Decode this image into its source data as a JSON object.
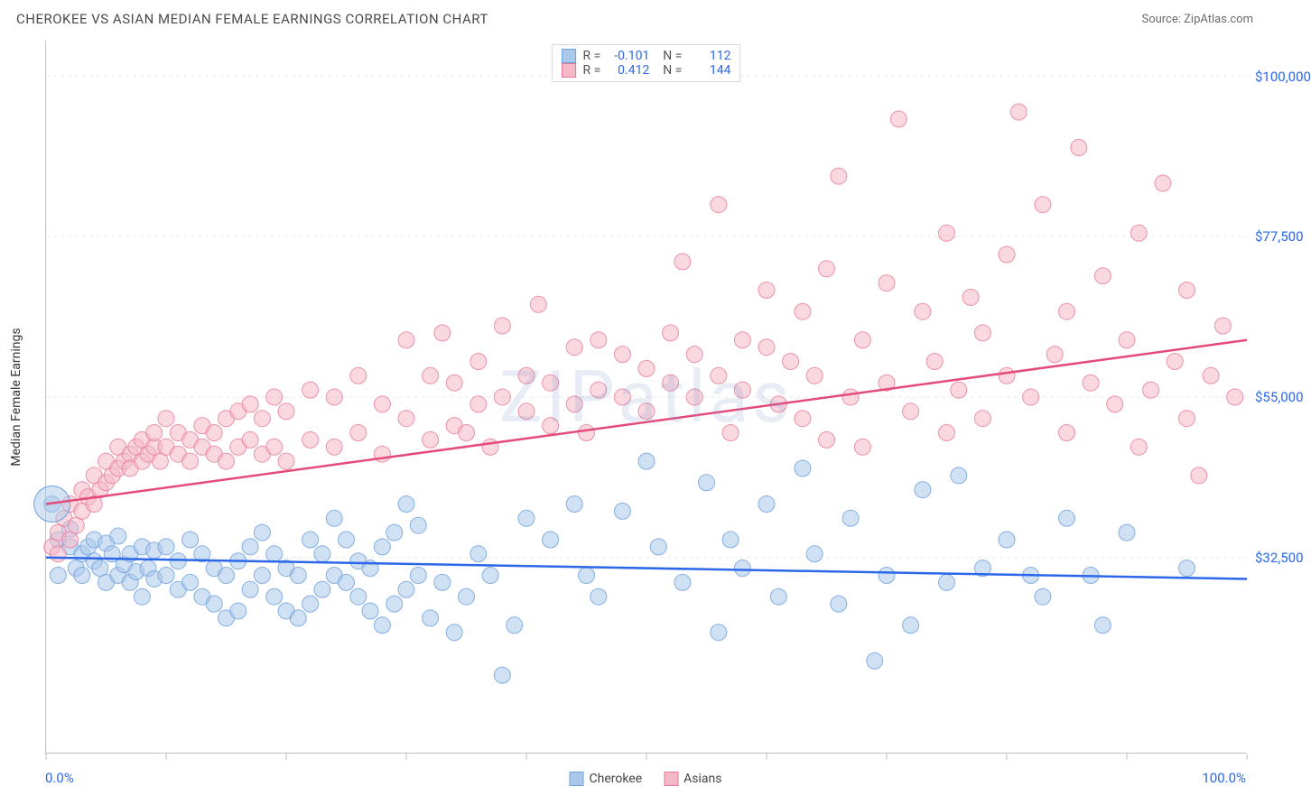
{
  "header": {
    "title": "CHEROKEE VS ASIAN MEDIAN FEMALE EARNINGS CORRELATION CHART",
    "source_prefix": "Source: ",
    "source_name": "ZipAtlas.com"
  },
  "watermark": "ZIPatlas",
  "chart": {
    "type": "scatter",
    "ylabel": "Median Female Earnings",
    "xlim": [
      0,
      100
    ],
    "ylim": [
      5000,
      105000
    ],
    "x_tick_positions": [
      0,
      10,
      20,
      30,
      40,
      50,
      60,
      70,
      80,
      90,
      100
    ],
    "x_tick_labels_shown": {
      "0": "0.0%",
      "100": "100.0%"
    },
    "y_gridlines": [
      32500,
      55000,
      77500,
      100000
    ],
    "y_tick_labels": {
      "32500": "$32,500",
      "55000": "$55,000",
      "77500": "$77,500",
      "100000": "$100,000"
    },
    "background_color": "#ffffff",
    "grid_color": "#e8e8e8",
    "axis_color": "#bfbfbf",
    "series": [
      {
        "name": "Cherokee",
        "marker_fill": "#a9c8ea",
        "marker_stroke": "#6b9fde",
        "marker_opacity": 0.55,
        "marker_radius": 9,
        "line_color": "#2b67e8",
        "line_width": 2.5,
        "stats": {
          "R": "-0.101",
          "N": "112"
        },
        "trend": {
          "x1": 0,
          "y1": 32500,
          "x2": 100,
          "y2": 29500
        },
        "points": [
          [
            0.5,
            40000
          ],
          [
            1,
            35000
          ],
          [
            1,
            30000
          ],
          [
            2,
            34000
          ],
          [
            2,
            36500
          ],
          [
            2.5,
            31000
          ],
          [
            3,
            33000
          ],
          [
            3,
            30000
          ],
          [
            3.5,
            34000
          ],
          [
            4,
            32000
          ],
          [
            4,
            35000
          ],
          [
            4.5,
            31000
          ],
          [
            5,
            29000
          ],
          [
            5,
            34500
          ],
          [
            5.5,
            33000
          ],
          [
            6,
            30000
          ],
          [
            6,
            35500
          ],
          [
            6.5,
            31500
          ],
          [
            7,
            29000
          ],
          [
            7,
            33000
          ],
          [
            7.5,
            30500
          ],
          [
            8,
            27000
          ],
          [
            8,
            34000
          ],
          [
            8.5,
            31000
          ],
          [
            9,
            29500
          ],
          [
            9,
            33500
          ],
          [
            10,
            30000
          ],
          [
            10,
            34000
          ],
          [
            11,
            28000
          ],
          [
            11,
            32000
          ],
          [
            12,
            29000
          ],
          [
            12,
            35000
          ],
          [
            13,
            27000
          ],
          [
            13,
            33000
          ],
          [
            14,
            26000
          ],
          [
            14,
            31000
          ],
          [
            15,
            24000
          ],
          [
            15,
            30000
          ],
          [
            16,
            25000
          ],
          [
            16,
            32000
          ],
          [
            17,
            28000
          ],
          [
            17,
            34000
          ],
          [
            18,
            30000
          ],
          [
            18,
            36000
          ],
          [
            19,
            27000
          ],
          [
            19,
            33000
          ],
          [
            20,
            25000
          ],
          [
            20,
            31000
          ],
          [
            21,
            24000
          ],
          [
            21,
            30000
          ],
          [
            22,
            26000
          ],
          [
            22,
            35000
          ],
          [
            23,
            28000
          ],
          [
            23,
            33000
          ],
          [
            24,
            30000
          ],
          [
            24,
            38000
          ],
          [
            25,
            29000
          ],
          [
            25,
            35000
          ],
          [
            26,
            27000
          ],
          [
            26,
            32000
          ],
          [
            27,
            25000
          ],
          [
            27,
            31000
          ],
          [
            28,
            23000
          ],
          [
            28,
            34000
          ],
          [
            29,
            26000
          ],
          [
            29,
            36000
          ],
          [
            30,
            28000
          ],
          [
            30,
            40000
          ],
          [
            31,
            30000
          ],
          [
            31,
            37000
          ],
          [
            32,
            24000
          ],
          [
            33,
            29000
          ],
          [
            34,
            22000
          ],
          [
            35,
            27000
          ],
          [
            36,
            33000
          ],
          [
            37,
            30000
          ],
          [
            38,
            16000
          ],
          [
            39,
            23000
          ],
          [
            40,
            38000
          ],
          [
            42,
            35000
          ],
          [
            44,
            40000
          ],
          [
            45,
            30000
          ],
          [
            46,
            27000
          ],
          [
            48,
            39000
          ],
          [
            50,
            46000
          ],
          [
            51,
            34000
          ],
          [
            53,
            29000
          ],
          [
            55,
            43000
          ],
          [
            56,
            22000
          ],
          [
            57,
            35000
          ],
          [
            58,
            31000
          ],
          [
            60,
            40000
          ],
          [
            61,
            27000
          ],
          [
            63,
            45000
          ],
          [
            64,
            33000
          ],
          [
            66,
            26000
          ],
          [
            67,
            38000
          ],
          [
            69,
            18000
          ],
          [
            70,
            30000
          ],
          [
            72,
            23000
          ],
          [
            73,
            42000
          ],
          [
            75,
            29000
          ],
          [
            76,
            44000
          ],
          [
            78,
            31000
          ],
          [
            80,
            35000
          ],
          [
            82,
            30000
          ],
          [
            83,
            27000
          ],
          [
            85,
            38000
          ],
          [
            87,
            30000
          ],
          [
            88,
            23000
          ],
          [
            90,
            36000
          ],
          [
            95,
            31000
          ]
        ]
      },
      {
        "name": "Asians",
        "marker_fill": "#f4b8c6",
        "marker_stroke": "#e77a98",
        "marker_opacity": 0.55,
        "marker_radius": 9,
        "line_color": "#e54b7a",
        "line_width": 2.5,
        "stats": {
          "R": "0.412",
          "N": "144"
        },
        "trend": {
          "x1": 0,
          "y1": 40000,
          "x2": 100,
          "y2": 63000
        },
        "points": [
          [
            0.5,
            34000
          ],
          [
            1,
            36000
          ],
          [
            1,
            33000
          ],
          [
            1.5,
            38000
          ],
          [
            2,
            35000
          ],
          [
            2,
            40000
          ],
          [
            2.5,
            37000
          ],
          [
            3,
            39000
          ],
          [
            3,
            42000
          ],
          [
            3.5,
            41000
          ],
          [
            4,
            40000
          ],
          [
            4,
            44000
          ],
          [
            4.5,
            42000
          ],
          [
            5,
            43000
          ],
          [
            5,
            46000
          ],
          [
            5.5,
            44000
          ],
          [
            6,
            45000
          ],
          [
            6,
            48000
          ],
          [
            6.5,
            46000
          ],
          [
            7,
            47000
          ],
          [
            7,
            45000
          ],
          [
            7.5,
            48000
          ],
          [
            8,
            46000
          ],
          [
            8,
            49000
          ],
          [
            8.5,
            47000
          ],
          [
            9,
            48000
          ],
          [
            9,
            50000
          ],
          [
            9.5,
            46000
          ],
          [
            10,
            48000
          ],
          [
            10,
            52000
          ],
          [
            11,
            47000
          ],
          [
            11,
            50000
          ],
          [
            12,
            46000
          ],
          [
            12,
            49000
          ],
          [
            13,
            48000
          ],
          [
            13,
            51000
          ],
          [
            14,
            47000
          ],
          [
            14,
            50000
          ],
          [
            15,
            46000
          ],
          [
            15,
            52000
          ],
          [
            16,
            48000
          ],
          [
            16,
            53000
          ],
          [
            17,
            49000
          ],
          [
            17,
            54000
          ],
          [
            18,
            47000
          ],
          [
            18,
            52000
          ],
          [
            19,
            48000
          ],
          [
            19,
            55000
          ],
          [
            20,
            46000
          ],
          [
            20,
            53000
          ],
          [
            22,
            49000
          ],
          [
            22,
            56000
          ],
          [
            24,
            48000
          ],
          [
            24,
            55000
          ],
          [
            26,
            50000
          ],
          [
            26,
            58000
          ],
          [
            28,
            47000
          ],
          [
            28,
            54000
          ],
          [
            30,
            52000
          ],
          [
            30,
            63000
          ],
          [
            32,
            49000
          ],
          [
            32,
            58000
          ],
          [
            33,
            64000
          ],
          [
            34,
            51000
          ],
          [
            34,
            57000
          ],
          [
            35,
            50000
          ],
          [
            36,
            54000
          ],
          [
            36,
            60000
          ],
          [
            37,
            48000
          ],
          [
            38,
            55000
          ],
          [
            38,
            65000
          ],
          [
            40,
            53000
          ],
          [
            40,
            58000
          ],
          [
            41,
            68000
          ],
          [
            42,
            51000
          ],
          [
            42,
            57000
          ],
          [
            44,
            54000
          ],
          [
            44,
            62000
          ],
          [
            45,
            50000
          ],
          [
            46,
            56000
          ],
          [
            46,
            63000
          ],
          [
            48,
            55000
          ],
          [
            48,
            61000
          ],
          [
            50,
            53000
          ],
          [
            50,
            59000
          ],
          [
            52,
            57000
          ],
          [
            52,
            64000
          ],
          [
            53,
            74000
          ],
          [
            54,
            55000
          ],
          [
            54,
            61000
          ],
          [
            56,
            58000
          ],
          [
            56,
            82000
          ],
          [
            57,
            50000
          ],
          [
            58,
            56000
          ],
          [
            58,
            63000
          ],
          [
            60,
            62000
          ],
          [
            60,
            70000
          ],
          [
            61,
            54000
          ],
          [
            62,
            60000
          ],
          [
            63,
            52000
          ],
          [
            63,
            67000
          ],
          [
            64,
            58000
          ],
          [
            65,
            49000
          ],
          [
            65,
            73000
          ],
          [
            66,
            86000
          ],
          [
            67,
            55000
          ],
          [
            68,
            48000
          ],
          [
            68,
            63000
          ],
          [
            70,
            57000
          ],
          [
            70,
            71000
          ],
          [
            71,
            94000
          ],
          [
            72,
            53000
          ],
          [
            73,
            67000
          ],
          [
            74,
            60000
          ],
          [
            75,
            50000
          ],
          [
            75,
            78000
          ],
          [
            76,
            56000
          ],
          [
            77,
            69000
          ],
          [
            78,
            52000
          ],
          [
            78,
            64000
          ],
          [
            80,
            58000
          ],
          [
            80,
            75000
          ],
          [
            81,
            95000
          ],
          [
            82,
            55000
          ],
          [
            83,
            82000
          ],
          [
            84,
            61000
          ],
          [
            85,
            50000
          ],
          [
            85,
            67000
          ],
          [
            86,
            90000
          ],
          [
            87,
            57000
          ],
          [
            88,
            72000
          ],
          [
            89,
            54000
          ],
          [
            90,
            63000
          ],
          [
            91,
            48000
          ],
          [
            91,
            78000
          ],
          [
            92,
            56000
          ],
          [
            93,
            85000
          ],
          [
            94,
            60000
          ],
          [
            95,
            52000
          ],
          [
            95,
            70000
          ],
          [
            96,
            44000
          ],
          [
            97,
            58000
          ],
          [
            98,
            65000
          ],
          [
            99,
            55000
          ]
        ]
      }
    ],
    "legend_bottom": [
      {
        "label": "Cherokee",
        "fill": "#a9c8ea",
        "stroke": "#6b9fde"
      },
      {
        "label": "Asians",
        "fill": "#f4b8c6",
        "stroke": "#e77a98"
      }
    ]
  }
}
